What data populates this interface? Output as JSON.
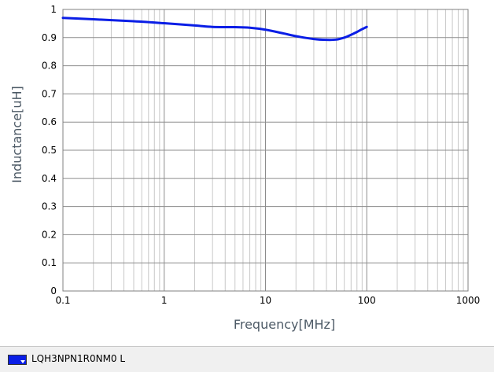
{
  "chart_data": {
    "type": "line",
    "title": "",
    "xlabel": "Frequency[MHz]",
    "ylabel": "Inductance[uH]",
    "x_scale": "log",
    "xlim": [
      0.1,
      1000
    ],
    "ylim": [
      0,
      1
    ],
    "x_ticks": [
      0.1,
      1,
      10,
      100,
      1000
    ],
    "x_tick_labels": [
      "0.1",
      "1",
      "10",
      "100",
      "1000"
    ],
    "y_ticks": [
      0,
      0.1,
      0.2,
      0.3,
      0.4,
      0.5,
      0.6,
      0.7,
      0.8,
      0.9,
      1
    ],
    "y_tick_labels": [
      "0",
      "0.1",
      "0.2",
      "0.3",
      "0.4",
      "0.5",
      "0.6",
      "0.7",
      "0.8",
      "0.9",
      "1"
    ],
    "grid": true,
    "legend_position": "bottom",
    "series": [
      {
        "name": "LQH3NPN1R0NM0  L",
        "color": "#0a1ee6",
        "x": [
          0.1,
          0.2,
          0.5,
          1,
          2,
          3,
          5,
          7,
          10,
          15,
          20,
          30,
          40,
          50,
          60,
          70,
          80,
          90,
          100
        ],
        "y": [
          0.97,
          0.965,
          0.958,
          0.951,
          0.943,
          0.938,
          0.937,
          0.935,
          0.928,
          0.915,
          0.905,
          0.895,
          0.892,
          0.893,
          0.9,
          0.91,
          0.92,
          0.93,
          0.938
        ]
      }
    ]
  },
  "legend": {
    "label": "LQH3NPN1R0NM0  L",
    "swatch_color": "#0a1ee6"
  }
}
